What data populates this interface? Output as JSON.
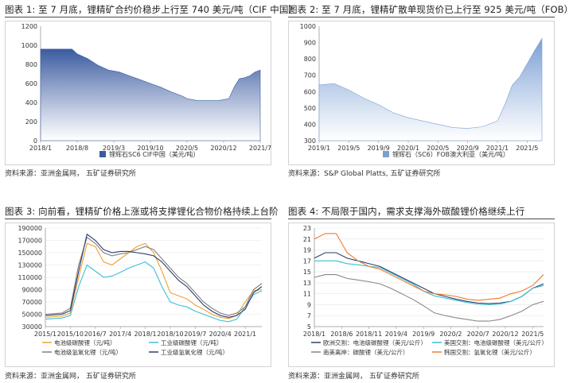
{
  "panels": [
    {
      "title": "图表 1:  至 7 月底，锂精矿合约价稳步上行至 740 美元/吨（CIF 中国）",
      "source": "资料来源：亚洲金属网，  五矿证券研究所"
    },
    {
      "title": "图表 2:  至 7 月底，锂精矿散单现货价已上行至 925 美元/吨（FOB）",
      "source": "资料来源：S&P Global Platts, 五矿证券研究所"
    },
    {
      "title": "图表 3:  向前看，锂精矿价格上涨或将支撑锂化合物价格持续上台阶",
      "source": "资料来源：亚洲金属网，  五矿证券研究所"
    },
    {
      "title": "图表 4:  不局限于国内，需求支撑海外碳酸锂价格继续上行",
      "source": "资料来源：亚洲金属网，  五矿证券研究所"
    }
  ],
  "chart_data": [
    {
      "type": "area",
      "x": [
        "2018/1",
        "2018/3",
        "2018/5",
        "2018/7",
        "2018/8",
        "2018/10",
        "2018/12",
        "2019/2",
        "2019/4",
        "2019/6",
        "2019/8",
        "2019/10",
        "2019/12",
        "2020/2",
        "2020/4",
        "2020/5",
        "2020/7",
        "2020/9",
        "2020/11",
        "2020/12",
        "2021/1",
        "2021/2",
        "2021/3",
        "2021/4",
        "2021/5",
        "2021/6",
        "2021/7"
      ],
      "values": [
        960,
        960,
        960,
        960,
        910,
        860,
        790,
        740,
        720,
        680,
        640,
        600,
        560,
        510,
        470,
        440,
        420,
        420,
        420,
        430,
        440,
        560,
        650,
        660,
        680,
        720,
        740
      ],
      "series": [
        {
          "name": "锂辉石SC6 CIF中国（美元/吨）",
          "color": "#3a5ba0"
        }
      ],
      "tick_labels": [
        "2018/1",
        "2018/8",
        "2019/3",
        "2019/10",
        "2020/5",
        "2020/12",
        "2021/7"
      ],
      "ylim": [
        0,
        1200
      ],
      "yticks": [
        0,
        200,
        400,
        600,
        800,
        1000,
        1200
      ],
      "legend": "bottom"
    },
    {
      "type": "area",
      "x": [
        "2019/1",
        "2019/3",
        "2019/5",
        "2019/7",
        "2019/9",
        "2019/11",
        "2020/1",
        "2020/3",
        "2020/5",
        "2020/7",
        "2020/9",
        "2020/11",
        "2021/1",
        "2021/2",
        "2021/3",
        "2021/4",
        "2021/5",
        "2021/6",
        "2021/7"
      ],
      "values": [
        640,
        650,
        610,
        560,
        520,
        470,
        440,
        420,
        400,
        380,
        375,
        385,
        420,
        520,
        640,
        690,
        770,
        850,
        925
      ],
      "series": [
        {
          "name": "锂辉石（SC6）FOB澳大利亚（美元/吨）",
          "color": "#7a9fd4"
        }
      ],
      "tick_labels": [
        "2019/1",
        "2019/5",
        "2019/9",
        "2020/1",
        "2020/5",
        "2020/9",
        "2021/1",
        "2021/5"
      ],
      "ylim": [
        300,
        1000
      ],
      "yticks": [
        300,
        400,
        500,
        600,
        700,
        800,
        900,
        1000
      ],
      "legend": "bottom"
    },
    {
      "type": "line",
      "x": [
        "2015/1",
        "2015/7",
        "2015/10",
        "2016/1",
        "2016/4",
        "2016/7",
        "2016/10",
        "2017/1",
        "2017/4",
        "2017/7",
        "2017/10",
        "2018/1",
        "2018/4",
        "2018/7",
        "2018/10",
        "2019/1",
        "2019/4",
        "2019/7",
        "2019/10",
        "2020/1",
        "2020/4",
        "2020/7",
        "2020/10",
        "2021/1",
        "2021/4",
        "2021/7"
      ],
      "series": [
        {
          "name": "电池级碳酸锂（元/吨）",
          "color": "#f0a030",
          "values": [
            45000,
            47000,
            52000,
            110000,
            165000,
            160000,
            135000,
            130000,
            140000,
            150000,
            160000,
            165000,
            150000,
            120000,
            85000,
            80000,
            75000,
            65000,
            58000,
            50000,
            45000,
            43000,
            48000,
            70000,
            88000,
            90000
          ]
        },
        {
          "name": "工业级碳酸锂（元/吨）",
          "color": "#3cc0d4",
          "values": [
            42000,
            44000,
            48000,
            95000,
            130000,
            120000,
            110000,
            112000,
            118000,
            125000,
            130000,
            135000,
            125000,
            95000,
            70000,
            65000,
            62000,
            55000,
            50000,
            45000,
            40000,
            38000,
            42000,
            62000,
            82000,
            88000
          ]
        },
        {
          "name": "电池级氢氧化锂（元/吨）",
          "color": "#808080",
          "values": [
            50000,
            52000,
            60000,
            130000,
            175000,
            165000,
            150000,
            145000,
            148000,
            150000,
            155000,
            160000,
            155000,
            140000,
            125000,
            110000,
            100000,
            85000,
            70000,
            60000,
            52000,
            48000,
            52000,
            62000,
            90000,
            100000
          ]
        },
        {
          "name": "工业级氢氧化锂（元/吨）",
          "color": "#2f3d6b",
          "values": [
            48000,
            50000,
            56000,
            120000,
            180000,
            170000,
            155000,
            150000,
            152000,
            152000,
            150000,
            148000,
            145000,
            135000,
            120000,
            105000,
            95000,
            80000,
            65000,
            55000,
            48000,
            45000,
            48000,
            58000,
            85000,
            95000
          ]
        }
      ],
      "tick_labels": [
        "2015/1",
        "2015/10",
        "2016/7",
        "2017/4",
        "2018/1",
        "2018/10",
        "2019/7",
        "2020/4",
        "2021/1"
      ],
      "ylim": [
        30000,
        190000
      ],
      "yticks": [
        30000,
        50000,
        70000,
        90000,
        110000,
        130000,
        150000,
        170000,
        190000
      ],
      "legend": "bottom"
    },
    {
      "type": "line",
      "x": [
        "2018/1",
        "2018/3",
        "2018/5",
        "2018/7",
        "2018/9",
        "2018/11",
        "2019/1",
        "2019/3",
        "2019/5",
        "2019/7",
        "2019/9",
        "2019/11",
        "2020/1",
        "2020/3",
        "2020/5",
        "2020/7",
        "2020/9",
        "2020/11",
        "2021/1",
        "2021/3",
        "2021/5",
        "2021/7"
      ],
      "series": [
        {
          "name": "欧洲交割：电池级碳酸锂（美元/公斤）",
          "color": "#2f3d6b",
          "values": [
            17.5,
            18.5,
            18.5,
            17.5,
            17.0,
            16.5,
            16.0,
            15.0,
            14.0,
            13.0,
            12.0,
            11.0,
            10.5,
            10.0,
            9.6,
            9.3,
            9.2,
            9.3,
            9.6,
            10.5,
            12.0,
            12.8
          ]
        },
        {
          "name": "美国交割：电池级碳酸锂（美元/公斤）",
          "color": "#3cc0d4",
          "values": [
            17.0,
            17.0,
            17.0,
            16.5,
            16.3,
            16.0,
            15.8,
            14.8,
            13.8,
            12.8,
            11.5,
            10.6,
            10.2,
            9.8,
            9.4,
            9.1,
            9.0,
            9.1,
            9.6,
            10.5,
            12.0,
            12.5
          ]
        },
        {
          "name": "南美离岸：碳酸锂（美元/公斤）",
          "color": "#888888",
          "values": [
            14.0,
            14.5,
            14.5,
            13.8,
            13.5,
            13.2,
            12.8,
            12.0,
            11.0,
            10.0,
            8.8,
            7.5,
            7.0,
            6.6,
            6.3,
            6.0,
            6.0,
            6.3,
            7.0,
            7.8,
            9.0,
            9.6
          ]
        },
        {
          "name": "韩国交割：氢氧化锂（美元/公斤）",
          "color": "#ee7a2e",
          "values": [
            21.0,
            22.0,
            22.0,
            18.5,
            17.0,
            16.0,
            15.5,
            14.5,
            13.5,
            12.5,
            11.5,
            11.0,
            10.8,
            10.5,
            10.0,
            9.8,
            10.0,
            10.2,
            11.0,
            11.5,
            12.5,
            14.5
          ]
        }
      ],
      "tick_labels": [
        "2018/1",
        "2018/6",
        "2018/11",
        "2019/4",
        "2019/9",
        "2020/2",
        "2020/7",
        "2020/12",
        "2021/5"
      ],
      "ylim": [
        5,
        23
      ],
      "yticks": [
        5,
        7,
        9,
        11,
        13,
        15,
        17,
        19,
        21,
        23
      ],
      "legend": "bottom"
    }
  ]
}
